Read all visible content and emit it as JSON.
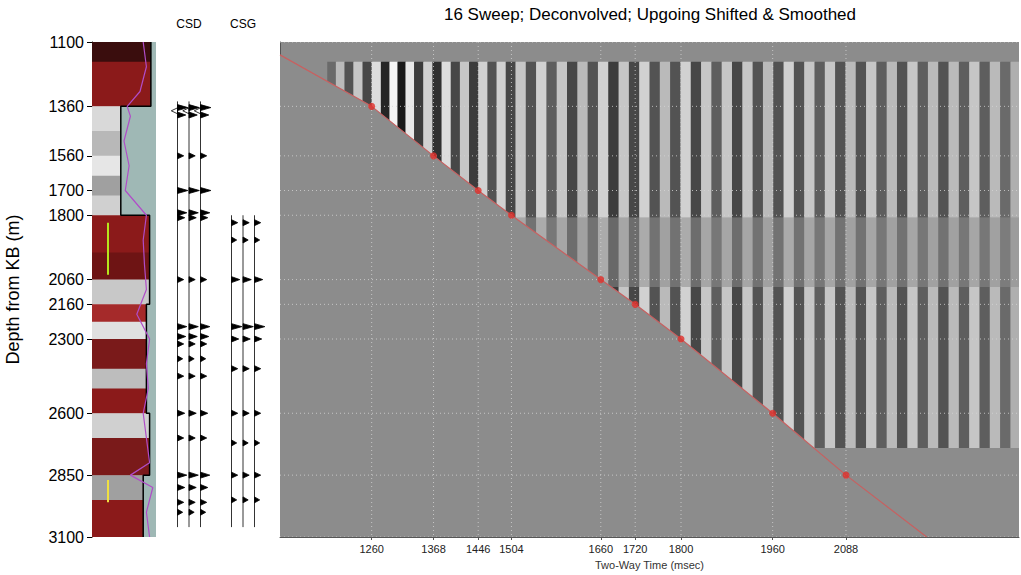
{
  "chart_data": {
    "type": "vsp",
    "title": "16 Sweep; Deconvolved; Upgoing Shifted & Smoothed",
    "x_label": "Two-Way Time (msec)",
    "y_label": "Depth from KB (m)",
    "xlim": [
      1100,
      2390
    ],
    "ylim": [
      1100,
      3100
    ],
    "xticks": [
      1260,
      1368,
      1446,
      1504,
      1660,
      1720,
      1800,
      1960,
      2088
    ],
    "yticks": [
      1100,
      1360,
      1560,
      1700,
      1800,
      2060,
      2160,
      2300,
      2600,
      2850,
      3100
    ],
    "grid": true,
    "picks": {
      "x": [
        1260,
        1368,
        1446,
        1504,
        1660,
        1720,
        1800,
        1960,
        2088
      ],
      "y": [
        1360,
        1560,
        1700,
        1800,
        2060,
        2160,
        2300,
        2600,
        2850
      ],
      "color": "#e0302a",
      "marker": "circle"
    },
    "first_break": {
      "x": [
        1100,
        1260,
        1368,
        1446,
        1504,
        1660,
        1720,
        1800,
        1960,
        2088,
        2229
      ],
      "y": [
        1152,
        1360,
        1560,
        1700,
        1800,
        2060,
        2160,
        2300,
        2600,
        2850,
        3100
      ],
      "color": "#c86060",
      "line_style": "solid"
    },
    "sections": [
      {
        "depth_range": [
          1180,
          1810
        ],
        "gain": 1
      },
      {
        "depth_range": [
          1810,
          2090
        ],
        "gain": 0.45
      },
      {
        "depth_range": [
          2090,
          2740
        ],
        "gain": 1
      }
    ],
    "events": {
      "time": [
        1190,
        1205,
        1220,
        1236,
        1252,
        1268,
        1284,
        1298,
        1312,
        1326,
        1342,
        1358,
        1374,
        1390,
        1406,
        1422,
        1438,
        1454,
        1470,
        1486,
        1502,
        1520,
        1538,
        1556,
        1574,
        1592,
        1610,
        1628,
        1646,
        1664,
        1682,
        1700,
        1718,
        1736,
        1754,
        1772,
        1790,
        1808,
        1826,
        1844,
        1862,
        1880,
        1898,
        1916,
        1934,
        1952,
        1970,
        1988,
        2006,
        2024,
        2042,
        2060,
        2078,
        2096,
        2114,
        2132,
        2150,
        2168,
        2186,
        2204,
        2222,
        2240,
        2258,
        2276,
        2294,
        2312,
        2330,
        2348,
        2366,
        2384
      ],
      "amplitude": [
        0.3,
        -0.4,
        0.5,
        -0.5,
        0.6,
        -0.7,
        0.9,
        -0.9,
        1.0,
        -0.8,
        0.7,
        -0.6,
        0.8,
        -0.7,
        0.6,
        -0.5,
        0.7,
        -0.6,
        0.5,
        -0.6,
        0.6,
        -0.5,
        0.5,
        -0.6,
        0.4,
        -0.5,
        0.6,
        -0.4,
        0.5,
        -0.6,
        0.7,
        -0.5,
        0.6,
        -0.6,
        0.5,
        -0.4,
        0.5,
        -0.6,
        0.6,
        -0.5,
        0.4,
        -0.5,
        0.6,
        -0.5,
        0.5,
        -0.4,
        0.5,
        -0.6,
        0.5,
        -0.5,
        0.4,
        -0.5,
        0.5,
        -0.4,
        0.5,
        -0.5,
        0.4,
        -0.4,
        0.5,
        -0.5,
        0.4,
        -0.4,
        0.5,
        -0.4,
        0.4,
        -0.5,
        0.4,
        -0.4,
        0.3,
        -0.3
      ]
    },
    "well_log": {
      "xlim": [
        0,
        1
      ],
      "intervals": [
        {
          "top": 1100,
          "bottom": 1180,
          "color": "#3a0d0d"
        },
        {
          "top": 1180,
          "bottom": 1360,
          "color": "#8b1a1a"
        },
        {
          "top": 1360,
          "bottom": 1460,
          "color": "#d9d9d9"
        },
        {
          "top": 1460,
          "bottom": 1560,
          "color": "#b8b8b8"
        },
        {
          "top": 1560,
          "bottom": 1640,
          "color": "#e6e6e6"
        },
        {
          "top": 1640,
          "bottom": 1720,
          "color": "#a0a0a0"
        },
        {
          "top": 1720,
          "bottom": 1800,
          "color": "#d0d0d0"
        },
        {
          "top": 1800,
          "bottom": 1950,
          "color": "#8b1a1a"
        },
        {
          "top": 1950,
          "bottom": 2060,
          "color": "#6e1414"
        },
        {
          "top": 2060,
          "bottom": 2160,
          "color": "#c8c8c8"
        },
        {
          "top": 2160,
          "bottom": 2230,
          "color": "#a52a2a"
        },
        {
          "top": 2230,
          "bottom": 2300,
          "color": "#e0e0e0"
        },
        {
          "top": 2300,
          "bottom": 2420,
          "color": "#7a1a1a"
        },
        {
          "top": 2420,
          "bottom": 2500,
          "color": "#bdbdbd"
        },
        {
          "top": 2500,
          "bottom": 2600,
          "color": "#8b1a1a"
        },
        {
          "top": 2600,
          "bottom": 2700,
          "color": "#d0d0d0"
        },
        {
          "top": 2700,
          "bottom": 2850,
          "color": "#7a1a1a"
        },
        {
          "top": 2850,
          "bottom": 2950,
          "color": "#a0a0a0"
        },
        {
          "top": 2950,
          "bottom": 3100,
          "color": "#8b1a1a"
        }
      ],
      "step_curve": {
        "depth": [
          1100,
          1360,
          1360,
          1800,
          1800,
          2160,
          2160,
          2600,
          2600,
          2850,
          2850,
          3100
        ],
        "values": [
          0.92,
          0.92,
          0.45,
          0.45,
          0.9,
          0.9,
          0.85,
          0.85,
          0.9,
          0.9,
          0.8,
          0.8
        ],
        "color": "#000000",
        "fill_color": "#9fb8b5"
      },
      "curve": {
        "depth": [
          1100,
          1200,
          1300,
          1360,
          1400,
          1500,
          1600,
          1700,
          1800,
          1900,
          2000,
          2100,
          2200,
          2300,
          2400,
          2500,
          2600,
          2700,
          2800,
          2850,
          2900,
          3000,
          3100
        ],
        "values": [
          0.8,
          0.85,
          0.75,
          0.55,
          0.6,
          0.5,
          0.58,
          0.52,
          0.85,
          0.8,
          0.82,
          0.85,
          0.7,
          0.9,
          0.85,
          0.88,
          0.8,
          0.85,
          0.9,
          0.6,
          0.95,
          0.85,
          0.9
        ],
        "color": "#b04cc8"
      },
      "markers": [
        {
          "depth": [
            1830,
            2040
          ],
          "value": 0.25,
          "color": "#b5e61d"
        },
        {
          "depth": [
            2870,
            2960
          ],
          "value": 0.25,
          "color": "#f0e040"
        }
      ]
    },
    "trace_panels": [
      {
        "title": "CSD",
        "depth_range": [
          1340,
          3060
        ],
        "events": {
          "depth": [
            1365,
            1378,
            1395,
            1560,
            1700,
            1790,
            1810,
            2060,
            2250,
            2290,
            2320,
            2380,
            2450,
            2600,
            2700,
            2850,
            2900,
            2960,
            3000
          ],
          "amplitude": [
            1,
            -0.6,
            0.8,
            0.6,
            1,
            0.9,
            0.7,
            0.6,
            0.9,
            0.8,
            0.6,
            0.5,
            0.6,
            0.7,
            0.6,
            0.9,
            0.7,
            0.6,
            0.5
          ]
        }
      },
      {
        "title": "CSG",
        "depth_range": [
          1800,
          3060
        ],
        "events": {
          "depth": [
            1830,
            1900,
            2060,
            2250,
            2300,
            2420,
            2600,
            2720,
            2850,
            2950
          ],
          "amplitude": [
            0.6,
            0.5,
            0.8,
            1,
            0.7,
            0.6,
            0.6,
            0.5,
            0.6,
            0.5
          ]
        }
      }
    ]
  }
}
